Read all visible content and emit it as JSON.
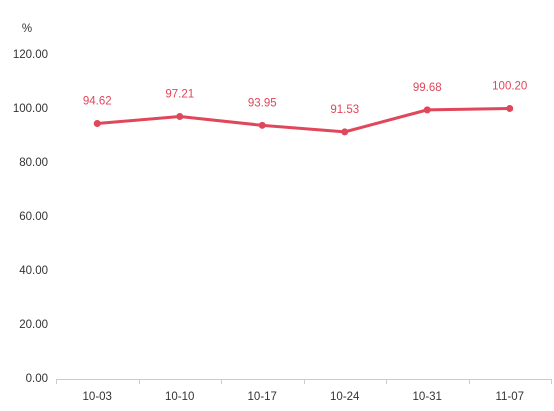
{
  "chart_data": {
    "type": "line",
    "y_label": "%",
    "categories": [
      "10-03",
      "10-10",
      "10-17",
      "10-24",
      "10-31",
      "11-07"
    ],
    "series": [
      {
        "color": "#e0475a",
        "values": [
          94.62,
          97.21,
          93.95,
          91.53,
          99.68,
          100.2
        ],
        "value_labels": [
          "94.62",
          "97.21",
          "93.95",
          "91.53",
          "99.68",
          "100.20"
        ]
      }
    ],
    "ylim": [
      0,
      120
    ],
    "yticks": [
      {
        "value": 0,
        "label": "0.00"
      },
      {
        "value": 20,
        "label": "20.00"
      },
      {
        "value": 40,
        "label": "40.00"
      },
      {
        "value": 60,
        "label": "60.00"
      },
      {
        "value": 80,
        "label": "80.00"
      },
      {
        "value": 100,
        "label": "100.00"
      },
      {
        "value": 120,
        "label": "120.00"
      }
    ],
    "grid": false
  }
}
